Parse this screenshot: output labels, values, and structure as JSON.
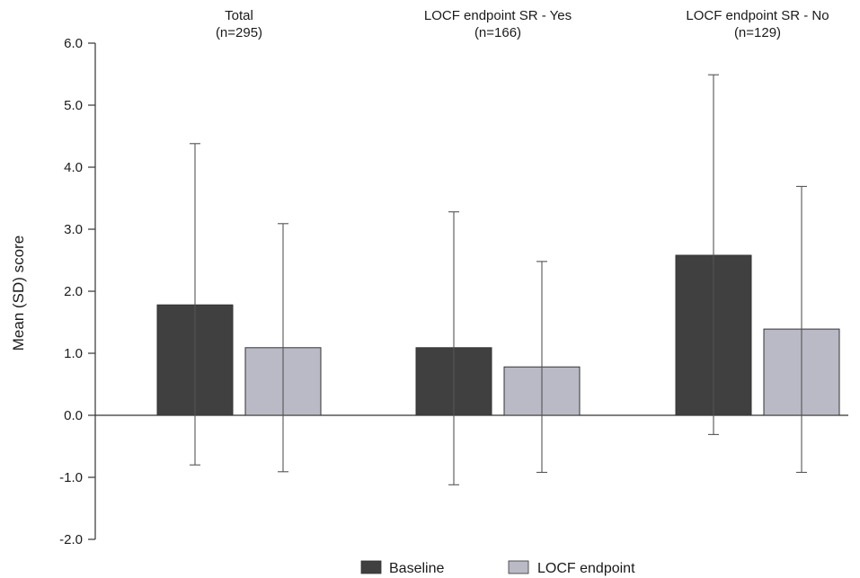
{
  "chart_data": {
    "type": "bar",
    "title": "",
    "xlabel": "",
    "ylabel": "Mean (SD) score",
    "ylim": [
      -2.0,
      6.0
    ],
    "yticks": [
      "6.0",
      "5.0",
      "4.0",
      "3.0",
      "2.0",
      "1.0",
      "0.0",
      "-1.0",
      "-2.0"
    ],
    "ytick_values": [
      6,
      5,
      4,
      3,
      2,
      1,
      0,
      -1,
      -2
    ],
    "grid": false,
    "legend_position": "bottom",
    "categories": [
      {
        "name": "Total",
        "n": "(n=295)"
      },
      {
        "name": "LOCF endpoint SR - Yes",
        "n": "(n=166)"
      },
      {
        "name": "LOCF endpoint SR - No",
        "n": "(n=129)"
      }
    ],
    "series": [
      {
        "name": "Baseline",
        "color": "#404040",
        "values": [
          1.78,
          1.09,
          2.58
        ],
        "error_low": [
          -0.8,
          -1.12,
          -0.31
        ],
        "error_high": [
          4.38,
          3.28,
          5.49
        ]
      },
      {
        "name": "LOCF endpoint",
        "color": "#babac6",
        "values": [
          1.09,
          0.78,
          1.39
        ],
        "error_low": [
          -0.91,
          -0.92,
          -0.92
        ],
        "error_high": [
          3.09,
          2.48,
          3.69
        ]
      }
    ]
  }
}
